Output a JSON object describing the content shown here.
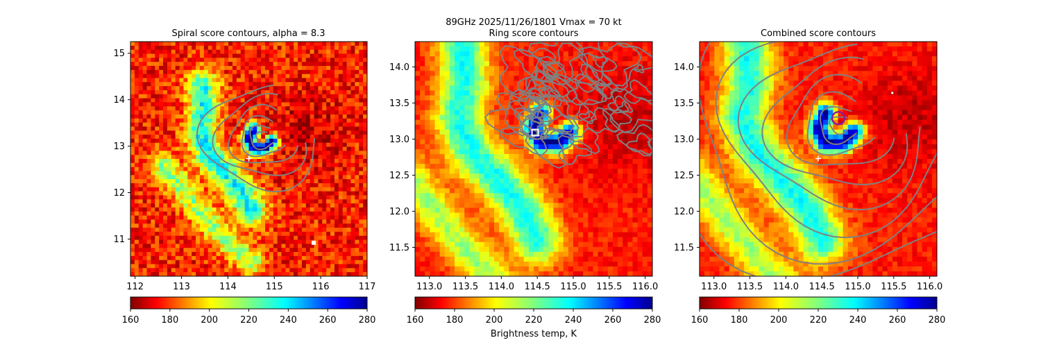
{
  "suptitle_line1": "89GHz  2025/11/26/1801    Vmax = 70 kt",
  "colorbar_label": "Brightness temp, K",
  "chart_data": [
    {
      "type": "heatmap",
      "title": "Spiral score contours, alpha =  8.3",
      "xlim": [
        111.9,
        117.0
      ],
      "ylim": [
        10.2,
        15.25
      ],
      "xticks": [
        112,
        113,
        114,
        115,
        116,
        117
      ],
      "yticks": [
        11,
        12,
        13,
        14,
        15
      ],
      "xtick_labels": [
        "112",
        "113",
        "114",
        "115",
        "116",
        "117"
      ],
      "ytick_labels": [
        "11",
        "12",
        "13",
        "14",
        "15"
      ],
      "colormap": "jet",
      "clim": [
        160,
        280
      ],
      "cbar_ticks": [
        160,
        180,
        200,
        220,
        240,
        260,
        280
      ],
      "cbar_tick_labels": [
        "160",
        "180",
        "200",
        "220",
        "240",
        "260",
        "280"
      ],
      "contour_color": "#808080",
      "markers": [
        {
          "kind": "plus",
          "x": 114.45,
          "y": 12.73,
          "color": "#ffffff"
        },
        {
          "kind": "square",
          "x": 115.85,
          "y": 10.92,
          "color": "#ffffff"
        }
      ]
    },
    {
      "type": "heatmap",
      "title": "Ring score contours",
      "xlim": [
        112.8,
        116.1
      ],
      "ylim": [
        11.1,
        14.35
      ],
      "xticks": [
        113.0,
        113.5,
        114.0,
        114.5,
        115.0,
        115.5,
        116.0
      ],
      "yticks": [
        11.5,
        12.0,
        12.5,
        13.0,
        13.5,
        14.0
      ],
      "xtick_labels": [
        "113.0",
        "113.5",
        "114.0",
        "114.5",
        "115.0",
        "115.5",
        "116.0"
      ],
      "ytick_labels": [
        "11.5",
        "12.0",
        "12.5",
        "13.0",
        "13.5",
        "14.0"
      ],
      "colormap": "jet",
      "clim": [
        160,
        280
      ],
      "cbar_ticks": [
        160,
        180,
        200,
        220,
        240,
        260,
        280
      ],
      "cbar_tick_labels": [
        "160",
        "180",
        "200",
        "220",
        "240",
        "260",
        "280"
      ],
      "contour_color": "#808080",
      "markers": [
        {
          "kind": "hollow-square",
          "x": 114.47,
          "y": 13.09,
          "color": "#ffffff"
        }
      ]
    },
    {
      "type": "heatmap",
      "title": "Combined score contours",
      "xlim": [
        112.8,
        116.1
      ],
      "ylim": [
        11.1,
        14.35
      ],
      "xticks": [
        113.0,
        113.5,
        114.0,
        114.5,
        115.0,
        115.5,
        116.0
      ],
      "yticks": [
        11.5,
        12.0,
        12.5,
        13.0,
        13.5,
        14.0
      ],
      "xtick_labels": [
        "113.0",
        "113.5",
        "114.0",
        "114.5",
        "115.0",
        "115.5",
        "116.0"
      ],
      "ytick_labels": [
        "11.5",
        "12.0",
        "12.5",
        "13.0",
        "13.5",
        "14.0"
      ],
      "colormap": "jet",
      "clim": [
        160,
        280
      ],
      "cbar_ticks": [
        160,
        180,
        200,
        220,
        240,
        260,
        280
      ],
      "cbar_tick_labels": [
        "160",
        "180",
        "200",
        "220",
        "240",
        "260",
        "280"
      ],
      "contour_color": "#808080",
      "markers": [
        {
          "kind": "plus",
          "x": 114.45,
          "y": 12.73,
          "color": "#ffffff"
        },
        {
          "kind": "circle",
          "x": 114.73,
          "y": 13.29,
          "color": "#8b1a9a"
        },
        {
          "kind": "dot",
          "x": 115.48,
          "y": 13.64,
          "color": "#ffffff"
        }
      ]
    }
  ]
}
